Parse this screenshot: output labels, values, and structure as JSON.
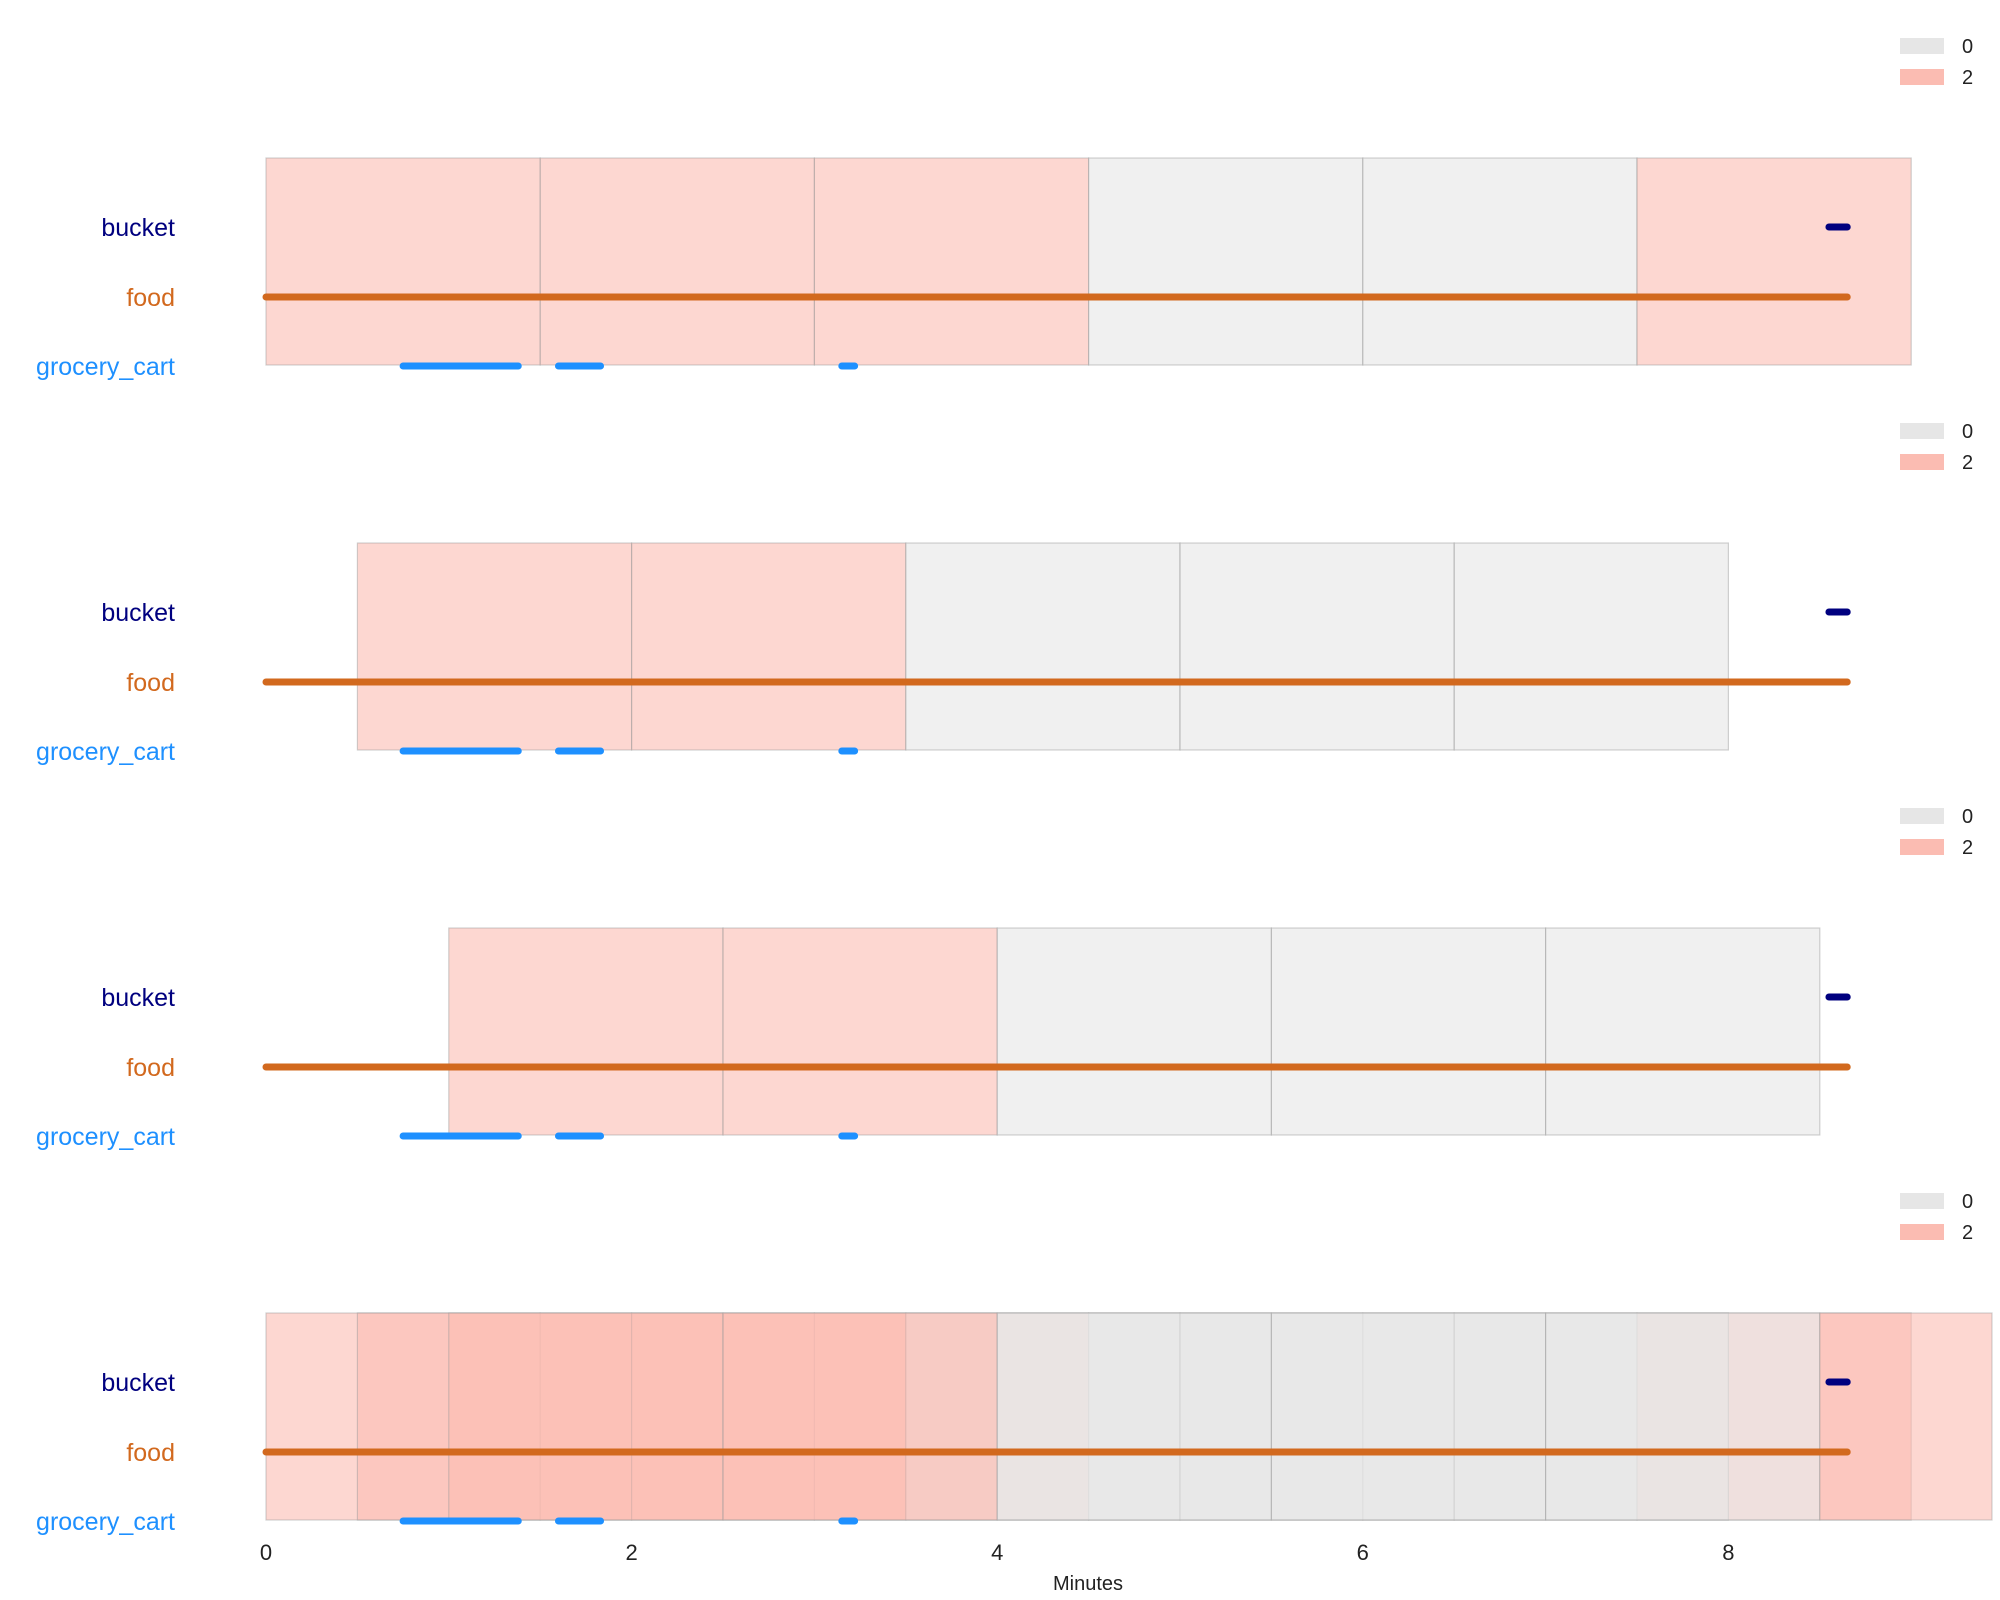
{
  "chart_data": {
    "type": "timeline",
    "xlabel": "Minutes",
    "xticks": [
      0,
      2,
      4,
      6,
      8
    ],
    "xlim": [
      0,
      9.45
    ],
    "grid": false,
    "legend_position": "top-right",
    "legend": [
      {
        "label": "0",
        "color": "#e6e6e6"
      },
      {
        "label": "2",
        "color": "#fbbcb2"
      }
    ],
    "categories": [
      {
        "name": "bucket",
        "color": "#00007f"
      },
      {
        "name": "food",
        "color": "#d2691e"
      },
      {
        "name": "grocery_cart",
        "color": "#1e90ff"
      }
    ],
    "detections": {
      "bucket": [
        [
          8.55,
          8.65
        ]
      ],
      "food": [
        [
          0,
          8.65
        ]
      ],
      "grocery_cart": [
        [
          0.75,
          1.38
        ],
        [
          1.6,
          1.83
        ],
        [
          3.15,
          3.22
        ]
      ]
    },
    "panels": [
      {
        "windows": [
          {
            "start": 0,
            "end": 1.5,
            "label": "2"
          },
          {
            "start": 1.5,
            "end": 3,
            "label": "2"
          },
          {
            "start": 3,
            "end": 4.5,
            "label": "2"
          },
          {
            "start": 4.5,
            "end": 6,
            "label": "0"
          },
          {
            "start": 6,
            "end": 7.5,
            "label": "0"
          },
          {
            "start": 7.5,
            "end": 9,
            "label": "2"
          }
        ]
      },
      {
        "windows": [
          {
            "start": 0.5,
            "end": 2,
            "label": "2"
          },
          {
            "start": 2,
            "end": 3.5,
            "label": "2"
          },
          {
            "start": 3.5,
            "end": 5,
            "label": "0"
          },
          {
            "start": 5,
            "end": 6.5,
            "label": "0"
          },
          {
            "start": 6.5,
            "end": 8,
            "label": "0"
          }
        ]
      },
      {
        "windows": [
          {
            "start": 1,
            "end": 2.5,
            "label": "2"
          },
          {
            "start": 2.5,
            "end": 4,
            "label": "2"
          },
          {
            "start": 4,
            "end": 5.5,
            "label": "0"
          },
          {
            "start": 5.5,
            "end": 7,
            "label": "0"
          },
          {
            "start": 7,
            "end": 8.5,
            "label": "0"
          }
        ]
      },
      {
        "combined": true,
        "windows": [
          {
            "start": 0,
            "end": 1.5,
            "label": "2"
          },
          {
            "start": 1.5,
            "end": 3,
            "label": "2"
          },
          {
            "start": 3,
            "end": 4.5,
            "label": "2"
          },
          {
            "start": 4.5,
            "end": 6,
            "label": "0"
          },
          {
            "start": 6,
            "end": 7.5,
            "label": "0"
          },
          {
            "start": 7.5,
            "end": 9,
            "label": "2"
          },
          {
            "start": 0.5,
            "end": 2,
            "label": "2"
          },
          {
            "start": 2,
            "end": 3.5,
            "label": "2"
          },
          {
            "start": 3.5,
            "end": 5,
            "label": "0"
          },
          {
            "start": 5,
            "end": 6.5,
            "label": "0"
          },
          {
            "start": 6.5,
            "end": 8,
            "label": "0"
          },
          {
            "start": 1,
            "end": 2.5,
            "label": "2"
          },
          {
            "start": 2.5,
            "end": 4,
            "label": "2"
          },
          {
            "start": 4,
            "end": 5.5,
            "label": "0"
          },
          {
            "start": 5.5,
            "end": 7,
            "label": "0"
          },
          {
            "start": 7,
            "end": 8.5,
            "label": "0"
          },
          {
            "start": 8.5,
            "end": 10,
            "label": "2"
          }
        ]
      }
    ]
  }
}
